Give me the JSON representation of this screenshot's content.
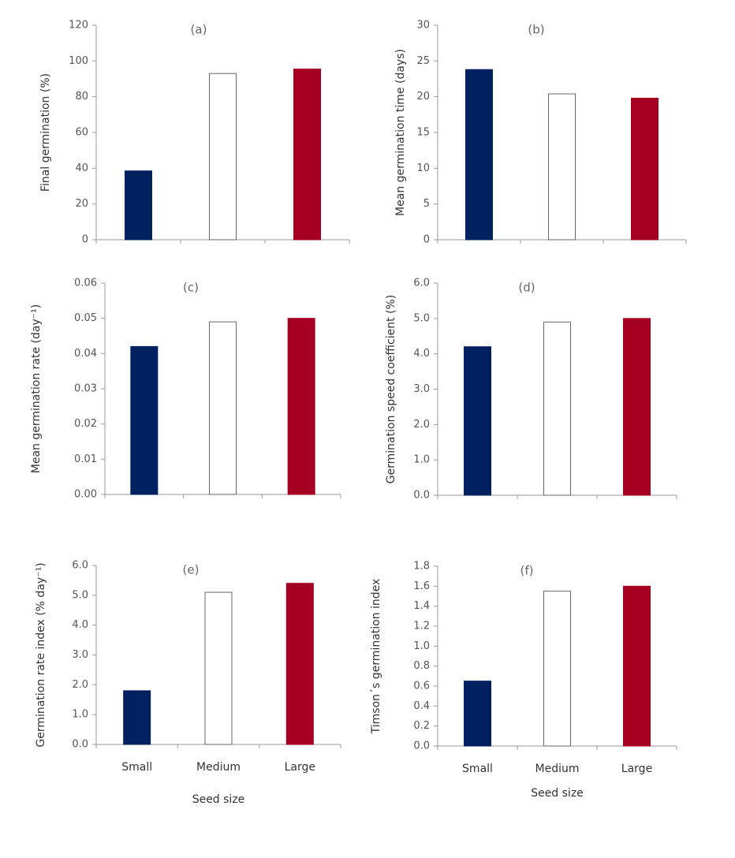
{
  "chart_data": [
    {
      "type": "bar",
      "title": "(a)",
      "y_label": "Final germination (%)",
      "categories": [
        null,
        null,
        null
      ],
      "values": [
        38.5,
        93,
        95.5
      ],
      "colors": [
        "#002060",
        "#ffffff",
        "#a50021"
      ],
      "ylim": [
        0,
        120
      ],
      "yticks": [
        0,
        20,
        40,
        60,
        80,
        100,
        120
      ]
    },
    {
      "type": "bar",
      "title": "(b)",
      "y_label": "Mean germination time (days)",
      "categories": [
        null,
        null,
        null
      ],
      "values": [
        23.8,
        20.4,
        19.8
      ],
      "colors": [
        "#002060",
        "#ffffff",
        "#a50021"
      ],
      "ylim": [
        0,
        30
      ],
      "yticks": [
        0,
        5,
        10,
        15,
        20,
        25,
        30
      ]
    },
    {
      "type": "bar",
      "title": "(c)",
      "y_label": "Mean germination rate (day⁻¹)",
      "categories": [
        null,
        null,
        null
      ],
      "values": [
        0.042,
        0.049,
        0.05
      ],
      "colors": [
        "#002060",
        "#ffffff",
        "#a50021"
      ],
      "ylim": [
        0,
        0.06
      ],
      "yticks": [
        {
          "value": 0,
          "label": "0.00"
        },
        0.01,
        0.02,
        0.03,
        0.04,
        0.05,
        0.06
      ]
    },
    {
      "type": "bar",
      "title": "(d)",
      "y_label": "Germination speed coefficient (%)",
      "categories": [
        null,
        null,
        null
      ],
      "values": [
        4.2,
        4.9,
        5.0
      ],
      "colors": [
        "#002060",
        "#ffffff",
        "#a50021"
      ],
      "ylim": [
        0,
        6
      ],
      "yticks": [
        {
          "value": 0,
          "label": "0.0"
        },
        {
          "value": 1,
          "label": "1.0"
        },
        {
          "value": 2,
          "label": "2.0"
        },
        {
          "value": 3,
          "label": "3.0"
        },
        {
          "value": 4,
          "label": "4.0"
        },
        {
          "value": 5,
          "label": "5.0"
        },
        {
          "value": 6,
          "label": "6.0"
        }
      ]
    },
    {
      "type": "bar",
      "title": "(e)",
      "y_label": "Germination rate index (% day⁻¹)",
      "x_label": "Seed size",
      "categories": [
        "Small",
        "Medium",
        "Large"
      ],
      "values": [
        1.8,
        5.1,
        5.4
      ],
      "colors": [
        "#002060",
        "#ffffff",
        "#a50021"
      ],
      "ylim": [
        0,
        6
      ],
      "yticks": [
        {
          "value": 0,
          "label": "0.0"
        },
        {
          "value": 1,
          "label": "1.0"
        },
        {
          "value": 2,
          "label": "2.0"
        },
        {
          "value": 3,
          "label": "3.0"
        },
        {
          "value": 4,
          "label": "4.0"
        },
        {
          "value": 5,
          "label": "5.0"
        },
        {
          "value": 6,
          "label": "6.0"
        }
      ]
    },
    {
      "type": "bar",
      "title": "(f)",
      "y_label": "Timson´s germination index",
      "x_label": "Seed size",
      "categories": [
        "Small",
        "Medium",
        "Large"
      ],
      "values": [
        0.65,
        1.55,
        1.6
      ],
      "colors": [
        "#002060",
        "#ffffff",
        "#a50021"
      ],
      "ylim": [
        0,
        1.8
      ],
      "yticks": [
        {
          "value": 0,
          "label": "0.0"
        },
        0.2,
        0.4,
        0.6,
        0.8,
        {
          "value": 1,
          "label": "1.0"
        },
        1.2,
        1.4,
        1.6,
        1.8
      ]
    }
  ]
}
